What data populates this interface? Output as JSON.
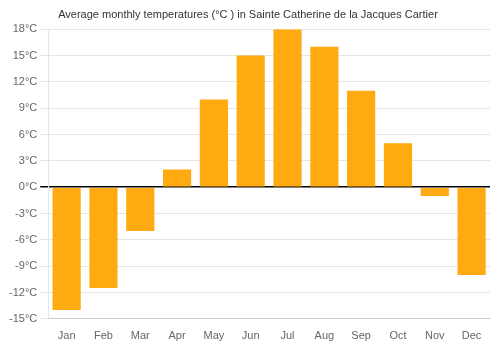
{
  "chart_data": {
    "type": "bar",
    "title": "Average monthly temperatures (°C ) in Sainte Catherine de la Jacques Cartier",
    "categories": [
      "Jan",
      "Feb",
      "Mar",
      "Apr",
      "May",
      "Jun",
      "Jul",
      "Aug",
      "Sep",
      "Oct",
      "Nov",
      "Dec"
    ],
    "values": [
      -14.0,
      -11.5,
      -5.0,
      2.0,
      10.0,
      15.0,
      18.0,
      16.0,
      11.0,
      5.0,
      -1.0,
      -10.0
    ],
    "color": "#FFAA10",
    "ylim": [
      -15,
      18
    ],
    "yticks": [
      {
        "value": -15,
        "label": "-15°C"
      },
      {
        "value": -12,
        "label": "-12°C"
      },
      {
        "value": -9,
        "label": "-9°C"
      },
      {
        "value": -6,
        "label": "-6°C"
      },
      {
        "value": -3,
        "label": "-3°C"
      },
      {
        "value": 0,
        "label": "0°C"
      },
      {
        "value": 3,
        "label": "3°C"
      },
      {
        "value": 6,
        "label": "6°C"
      },
      {
        "value": 9,
        "label": "9°C"
      },
      {
        "value": 12,
        "label": "12°C"
      },
      {
        "value": 15,
        "label": "15°C"
      },
      {
        "value": 18,
        "label": "18°C"
      }
    ],
    "grid": true
  }
}
